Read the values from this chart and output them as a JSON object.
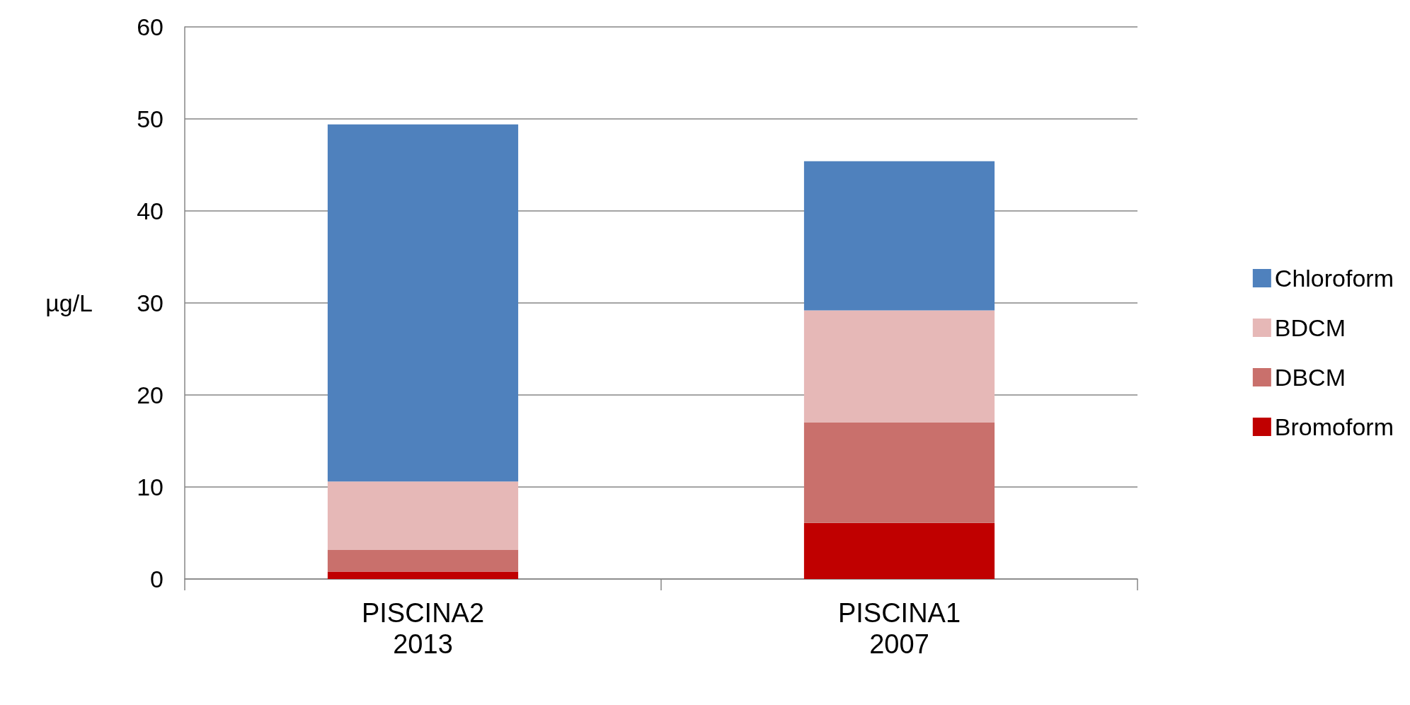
{
  "chart_data": {
    "type": "bar",
    "stacked": true,
    "ylabel": "µg/L",
    "categories": [
      "PISCINA2\n2013",
      "PISCINA1\n2007"
    ],
    "series": [
      {
        "name": "Bromoform",
        "color": "#c00000",
        "values": [
          0.8,
          6.1
        ]
      },
      {
        "name": "DBCM",
        "color": "#c9706c",
        "values": [
          2.4,
          10.9
        ]
      },
      {
        "name": "BDCM",
        "color": "#e6b8b7",
        "values": [
          7.4,
          12.2
        ]
      },
      {
        "name": "Chloroform",
        "color": "#4f81bd",
        "values": [
          38.8,
          16.2
        ]
      }
    ],
    "ylim": [
      0,
      60
    ],
    "yticks": [
      0,
      10,
      20,
      30,
      40,
      50,
      60
    ],
    "grid": "y",
    "legend": "right"
  }
}
